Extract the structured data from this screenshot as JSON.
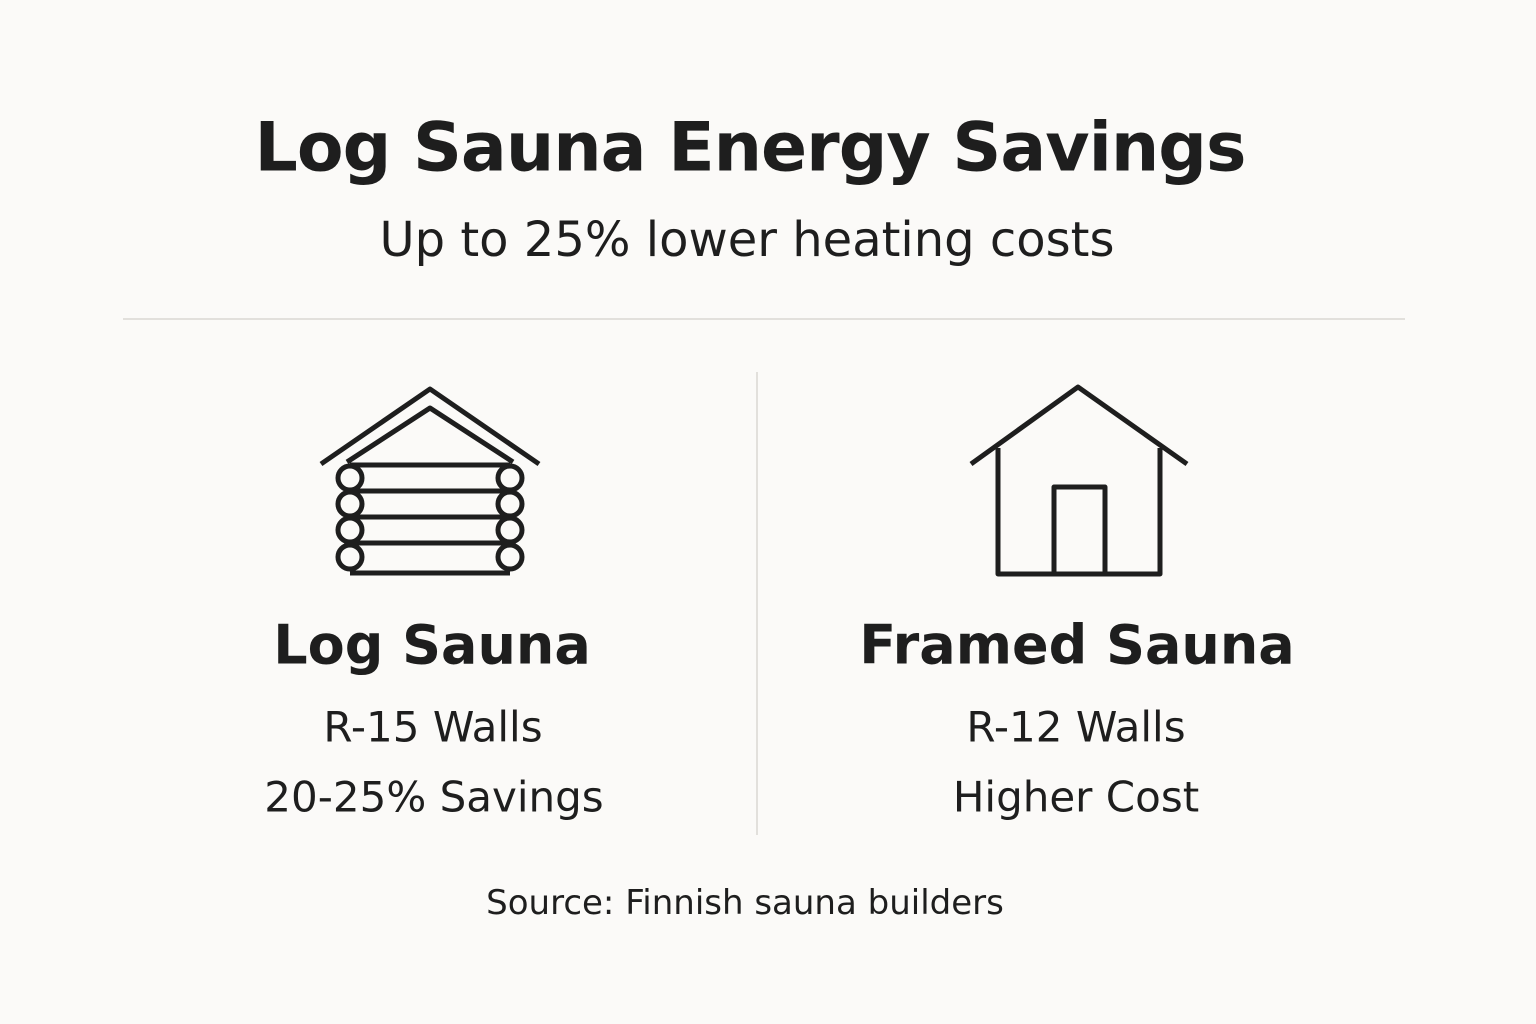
{
  "header": {
    "title": "Log Sauna Energy Savings",
    "subtitle": "Up to 25% lower heating costs"
  },
  "columns": [
    {
      "icon": "log-cabin-icon",
      "heading": "Log Sauna",
      "lines": [
        "R-15 Walls",
        "20-25% Savings"
      ]
    },
    {
      "icon": "house-icon",
      "heading": "Framed Sauna",
      "lines": [
        "R-12 Walls",
        "Higher Cost"
      ]
    }
  ],
  "footer": {
    "source": "Source: Finnish sauna builders"
  },
  "colors": {
    "text": "#1e1e1e",
    "background": "#fbfaf8",
    "divider": "#e2e0dc"
  }
}
